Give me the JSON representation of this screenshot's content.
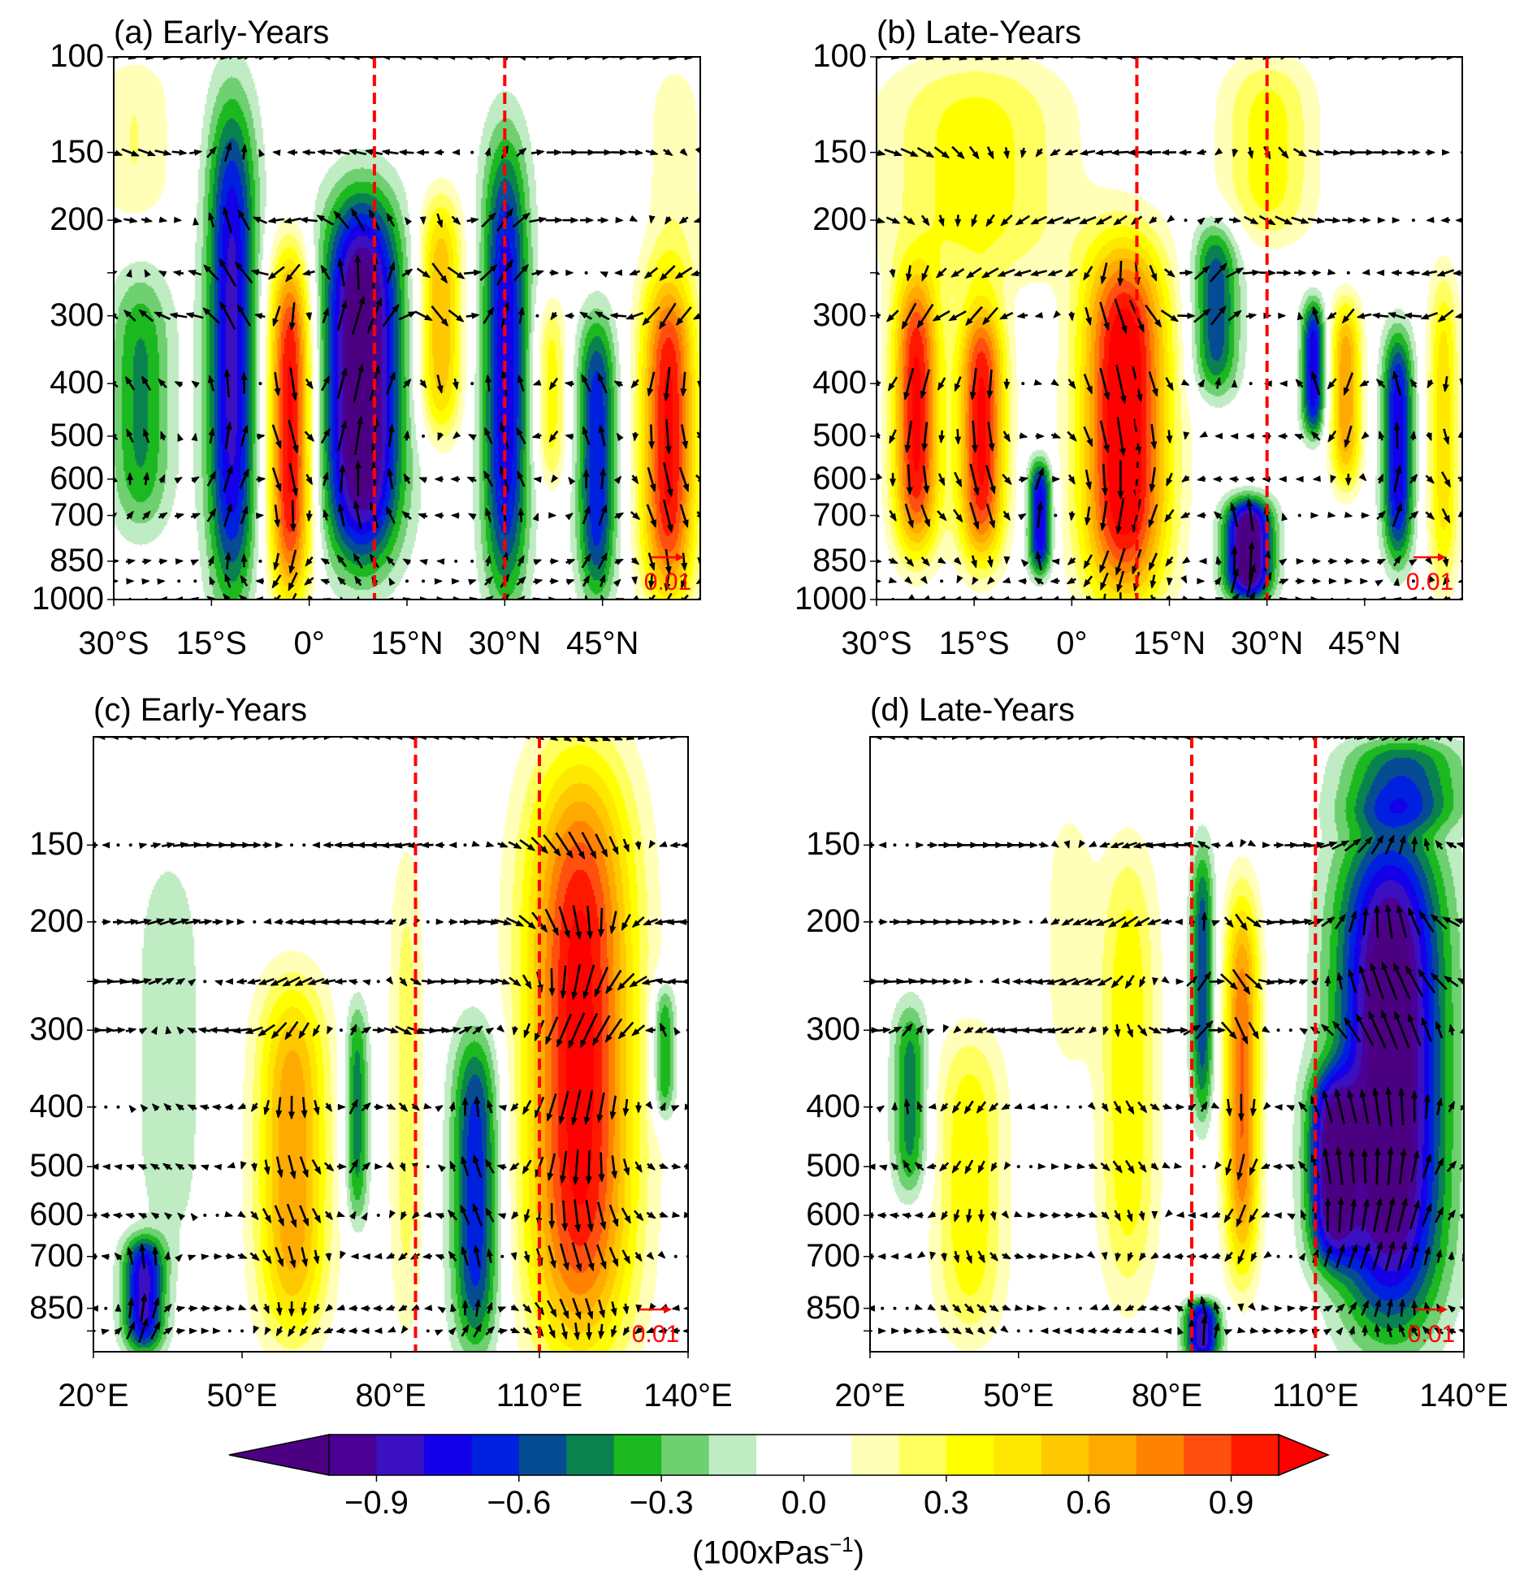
{
  "chart_data": [
    {
      "type": "heatmap",
      "title": "(a) Early-Years",
      "x_ticks": [
        -30,
        -15,
        0,
        15,
        30,
        45
      ],
      "x_tick_labels": [
        "30°S",
        "15°S",
        "0°",
        "15°N",
        "30°N",
        "45°N"
      ],
      "xlim": [
        -30,
        60
      ],
      "y_ticks": [
        100,
        150,
        200,
        300,
        400,
        500,
        600,
        700,
        850,
        1000
      ],
      "y_tick_labels": [
        "100",
        "150",
        "200",
        "300",
        "400",
        "500",
        "600",
        "700",
        "850",
        "1000"
      ],
      "ylim": [
        1000,
        100
      ],
      "y_scale": "log",
      "dashed_lines": [
        10,
        30
      ],
      "reference_vector_label": "0.01",
      "anomaly_centers": [
        {
          "x": -26,
          "p_top": 250,
          "p_bottom": 750,
          "half_width": 4,
          "value": -0.38
        },
        {
          "x": -27,
          "p_top": 100,
          "p_bottom": 200,
          "half_width": 5,
          "value": 0.18
        },
        {
          "x": -12,
          "p_top": 120,
          "p_bottom": 1000,
          "half_width": 3.2,
          "value": -0.75
        },
        {
          "x": -3,
          "p_top": 230,
          "p_bottom": 1000,
          "half_width": 2.8,
          "value": 0.95
        },
        {
          "x": 8,
          "p_top": 180,
          "p_bottom": 850,
          "half_width": 5,
          "value": -1.05
        },
        {
          "x": 20,
          "p_top": 180,
          "p_bottom": 500,
          "half_width": 2.8,
          "value": 0.55
        },
        {
          "x": 30,
          "p_top": 140,
          "p_bottom": 1000,
          "half_width": 3,
          "value": -0.7
        },
        {
          "x": 37,
          "p_top": 280,
          "p_bottom": 620,
          "half_width": 2,
          "value": 0.32
        },
        {
          "x": 44,
          "p_top": 300,
          "p_bottom": 1000,
          "half_width": 2.5,
          "value": -0.62
        },
        {
          "x": 55,
          "p_top": 250,
          "p_bottom": 1000,
          "half_width": 3.5,
          "value": 0.92
        },
        {
          "x": 56,
          "p_top": 100,
          "p_bottom": 250,
          "half_width": 4,
          "value": 0.15
        }
      ]
    },
    {
      "type": "heatmap",
      "title": "(b) Late-Years",
      "x_ticks": [
        -30,
        -15,
        0,
        15,
        30,
        45
      ],
      "x_tick_labels": [
        "30°S",
        "15°S",
        "0°",
        "15°N",
        "30°N",
        "45°N"
      ],
      "xlim": [
        -30,
        60
      ],
      "y_ticks": [
        100,
        150,
        200,
        300,
        400,
        500,
        600,
        700,
        850,
        1000
      ],
      "y_tick_labels": [
        "100",
        "150",
        "200",
        "300",
        "400",
        "500",
        "600",
        "700",
        "850",
        "1000"
      ],
      "ylim": [
        1000,
        100
      ],
      "y_scale": "log",
      "dashed_lines": [
        10,
        30
      ],
      "reference_vector_label": "0.01",
      "anomaly_centers": [
        {
          "x": -15,
          "p_top": 100,
          "p_bottom": 260,
          "half_width": 12,
          "value": 0.32
        },
        {
          "x": 30,
          "p_top": 100,
          "p_bottom": 220,
          "half_width": 6,
          "value": 0.32
        },
        {
          "x": -24,
          "p_top": 250,
          "p_bottom": 820,
          "half_width": 3,
          "value": 0.92
        },
        {
          "x": -14,
          "p_top": 280,
          "p_bottom": 850,
          "half_width": 3,
          "value": 0.92
        },
        {
          "x": -5,
          "p_top": 550,
          "p_bottom": 900,
          "half_width": 1.5,
          "value": -0.72
        },
        {
          "x": 8,
          "p_top": 220,
          "p_bottom": 1000,
          "half_width": 5.5,
          "value": 1.05
        },
        {
          "x": 22,
          "p_top": 200,
          "p_bottom": 420,
          "half_width": 3,
          "value": -0.52
        },
        {
          "x": 27,
          "p_top": 650,
          "p_bottom": 1000,
          "half_width": 3,
          "value": -1.05
        },
        {
          "x": 37,
          "p_top": 280,
          "p_bottom": 500,
          "half_width": 1.5,
          "value": -0.7
        },
        {
          "x": 42,
          "p_top": 280,
          "p_bottom": 620,
          "half_width": 2,
          "value": 0.62
        },
        {
          "x": 50,
          "p_top": 320,
          "p_bottom": 850,
          "half_width": 2,
          "value": -0.7
        },
        {
          "x": 57,
          "p_top": 250,
          "p_bottom": 950,
          "half_width": 2,
          "value": 0.42
        }
      ]
    },
    {
      "type": "heatmap",
      "title": "(c) Early-Years",
      "x_ticks": [
        20,
        50,
        80,
        110,
        140
      ],
      "x_tick_labels": [
        "20°E",
        "50°E",
        "80°E",
        "110°E",
        "140°E"
      ],
      "xlim": [
        20,
        140
      ],
      "y_ticks": [
        150,
        200,
        300,
        400,
        500,
        600,
        700,
        850
      ],
      "y_tick_labels": [
        "150",
        "200",
        "300",
        "400",
        "500",
        "600",
        "700",
        "850"
      ],
      "ylim": [
        1000,
        100
      ],
      "y_scale": "log",
      "dashed_lines": [
        85,
        110
      ],
      "reference_vector_label": "0.01",
      "anomaly_centers": [
        {
          "x": 35,
          "p_top": 150,
          "p_bottom": 700,
          "half_width": 6,
          "value": -0.16
        },
        {
          "x": 30,
          "p_top": 650,
          "p_bottom": 1000,
          "half_width": 3.5,
          "value": -0.75
        },
        {
          "x": 60,
          "p_top": 250,
          "p_bottom": 950,
          "half_width": 6,
          "value": 0.62
        },
        {
          "x": 73,
          "p_top": 270,
          "p_bottom": 620,
          "half_width": 2,
          "value": -0.42
        },
        {
          "x": 83,
          "p_top": 150,
          "p_bottom": 950,
          "half_width": 3,
          "value": 0.22
        },
        {
          "x": 97,
          "p_top": 300,
          "p_bottom": 1000,
          "half_width": 4,
          "value": -0.62
        },
        {
          "x": 118,
          "p_top": 110,
          "p_bottom": 1000,
          "half_width": 9,
          "value": 0.95
        },
        {
          "x": 135,
          "p_top": 250,
          "p_bottom": 420,
          "half_width": 2,
          "value": -0.42
        }
      ]
    },
    {
      "type": "heatmap",
      "title": "(d) Late-Years",
      "x_ticks": [
        20,
        50,
        80,
        110,
        140
      ],
      "x_tick_labels": [
        "20°E",
        "50°E",
        "80°E",
        "110°E",
        "140°E"
      ],
      "xlim": [
        20,
        140
      ],
      "y_ticks": [
        150,
        200,
        300,
        400,
        500,
        600,
        700,
        850
      ],
      "y_tick_labels": [
        "150",
        "200",
        "300",
        "400",
        "500",
        "600",
        "700",
        "850"
      ],
      "ylim": [
        1000,
        100
      ],
      "y_scale": "log",
      "dashed_lines": [
        85,
        110
      ],
      "reference_vector_label": "0.01",
      "anomaly_centers": [
        {
          "x": 28,
          "p_top": 270,
          "p_bottom": 560,
          "half_width": 3,
          "value": -0.42
        },
        {
          "x": 40,
          "p_top": 300,
          "p_bottom": 950,
          "half_width": 6,
          "value": 0.35
        },
        {
          "x": 60,
          "p_top": 130,
          "p_bottom": 350,
          "half_width": 4,
          "value": 0.16
        },
        {
          "x": 72,
          "p_top": 150,
          "p_bottom": 820,
          "half_width": 5,
          "value": 0.35
        },
        {
          "x": 87,
          "p_top": 150,
          "p_bottom": 420,
          "half_width": 2,
          "value": -0.52
        },
        {
          "x": 87,
          "p_top": 850,
          "p_bottom": 1000,
          "half_width": 3,
          "value": -0.8
        },
        {
          "x": 95,
          "p_top": 180,
          "p_bottom": 750,
          "half_width": 3,
          "value": 0.72
        },
        {
          "x": 125,
          "p_top": 140,
          "p_bottom": 900,
          "half_width": 9,
          "value": -1.05
        },
        {
          "x": 113,
          "p_top": 350,
          "p_bottom": 720,
          "half_width": 4,
          "value": -0.7
        },
        {
          "x": 128,
          "p_top": 100,
          "p_bottom": 140,
          "half_width": 10,
          "value": -0.42
        }
      ]
    }
  ],
  "colorbar": {
    "levels": [
      -1.0,
      -0.9,
      -0.8,
      -0.7,
      -0.6,
      -0.5,
      -0.4,
      -0.3,
      -0.2,
      -0.1,
      0.1,
      0.2,
      0.3,
      0.4,
      0.5,
      0.6,
      0.7,
      0.8,
      0.9,
      1.0
    ],
    "colors": [
      "#4b0096",
      "#3a10c0",
      "#1400e8",
      "#0020e0",
      "#054c94",
      "#0a8250",
      "#1cb820",
      "#6ed070",
      "#c0ecc4",
      "#ffffff",
      "#ffffb8",
      "#ffff60",
      "#ffff00",
      "#ffe800",
      "#ffc800",
      "#ffaa00",
      "#ff8200",
      "#ff5010",
      "#ff1800"
    ],
    "extend_low_color": "#4b0082",
    "extend_high_color": "#ff0000",
    "ticks": [
      -0.9,
      -0.6,
      -0.3,
      0.0,
      0.3,
      0.6,
      0.9
    ],
    "tick_labels": [
      "−0.9",
      "−0.6",
      "−0.3",
      "0.0",
      "0.3",
      "0.6",
      "0.9"
    ],
    "unit_prefix": "(100xPas",
    "unit_exponent": "−1",
    "unit_suffix": ")"
  },
  "colors": {
    "dashed_line": "#ff0000",
    "vector": "#000000",
    "reference_vector": "#ff0000"
  }
}
